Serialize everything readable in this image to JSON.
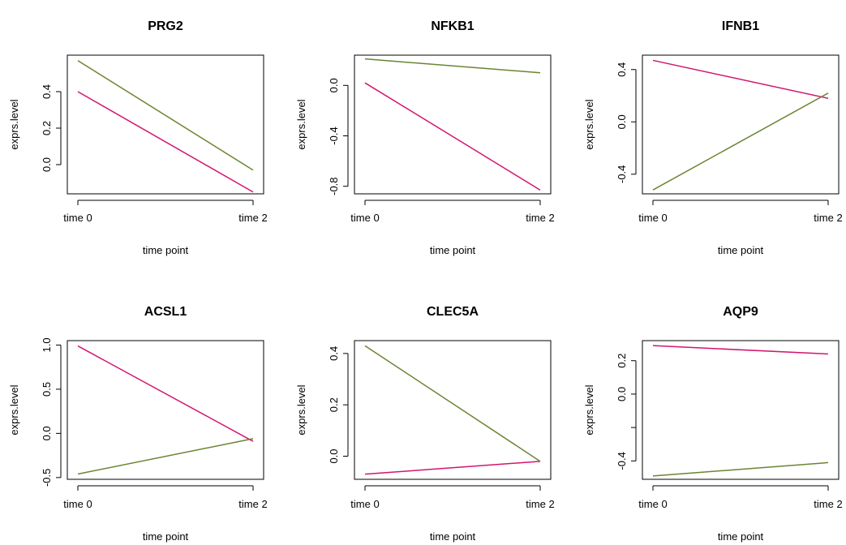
{
  "colors": {
    "series_a": "#d4156e",
    "series_b": "#6b8433",
    "axis": "#000000"
  },
  "chart_data": [
    {
      "type": "line",
      "title": "PRG2",
      "xlabel": "time point",
      "ylabel": "exprs.level",
      "categories": [
        "time 0",
        "time 2"
      ],
      "ylim": [
        -0.16,
        0.6
      ],
      "yticks": [
        0.0,
        0.2,
        0.4
      ],
      "ytick_labels": [
        "0.0",
        "0.2",
        "0.4"
      ],
      "series": [
        {
          "values": [
            0.4,
            -0.15
          ],
          "color": "#d4156e"
        },
        {
          "values": [
            0.57,
            -0.03
          ],
          "color": "#6b8433"
        }
      ]
    },
    {
      "type": "line",
      "title": "NFKB1",
      "xlabel": "time point",
      "ylabel": "exprs.level",
      "categories": [
        "time 0",
        "time 2"
      ],
      "ylim": [
        -0.86,
        0.24
      ],
      "yticks": [
        -0.8,
        -0.4,
        0.0
      ],
      "ytick_labels": [
        "-0.8",
        "-0.4",
        "0.0"
      ],
      "series": [
        {
          "values": [
            0.02,
            -0.83
          ],
          "color": "#d4156e"
        },
        {
          "values": [
            0.21,
            0.1
          ],
          "color": "#6b8433"
        }
      ]
    },
    {
      "type": "line",
      "title": "IFNB1",
      "xlabel": "time point",
      "ylabel": "exprs.level",
      "categories": [
        "time 0",
        "time 2"
      ],
      "ylim": [
        -0.55,
        0.51
      ],
      "yticks": [
        -0.4,
        0.0,
        0.4
      ],
      "ytick_labels": [
        "-0.4",
        "0.0",
        "0.4"
      ],
      "series": [
        {
          "values": [
            0.47,
            0.18
          ],
          "color": "#d4156e"
        },
        {
          "values": [
            -0.52,
            0.22
          ],
          "color": "#6b8433"
        }
      ]
    },
    {
      "type": "line",
      "title": "ACSL1",
      "xlabel": "time point",
      "ylabel": "exprs.level",
      "categories": [
        "time 0",
        "time 2"
      ],
      "ylim": [
        -0.52,
        1.05
      ],
      "yticks": [
        -0.5,
        0.0,
        0.5,
        1.0
      ],
      "ytick_labels": [
        "-0.5",
        "0.0",
        "0.5",
        "1.0"
      ],
      "series": [
        {
          "values": [
            0.99,
            -0.09
          ],
          "color": "#d4156e"
        },
        {
          "values": [
            -0.46,
            -0.06
          ],
          "color": "#6b8433"
        }
      ]
    },
    {
      "type": "line",
      "title": "CLEC5A",
      "xlabel": "time point",
      "ylabel": "exprs.level",
      "categories": [
        "time 0",
        "time 2"
      ],
      "ylim": [
        -0.09,
        0.45
      ],
      "yticks": [
        0.0,
        0.2,
        0.4
      ],
      "ytick_labels": [
        "0.0",
        "0.2",
        "0.4"
      ],
      "series": [
        {
          "values": [
            -0.07,
            -0.02
          ],
          "color": "#d4156e"
        },
        {
          "values": [
            0.43,
            -0.02
          ],
          "color": "#6b8433"
        }
      ]
    },
    {
      "type": "line",
      "title": "AQP9",
      "xlabel": "time point",
      "ylabel": "exprs.level",
      "categories": [
        "time 0",
        "time 2"
      ],
      "ylim": [
        -0.51,
        0.32
      ],
      "yticks": [
        -0.4,
        0.0,
        0.2
      ],
      "ytick_labels": [
        "-0.4",
        "0.0",
        "0.2"
      ],
      "minor_yticks": [
        -0.2
      ],
      "series": [
        {
          "values": [
            0.29,
            0.24
          ],
          "color": "#d4156e"
        },
        {
          "values": [
            -0.49,
            -0.41
          ],
          "color": "#6b8433"
        }
      ]
    }
  ]
}
